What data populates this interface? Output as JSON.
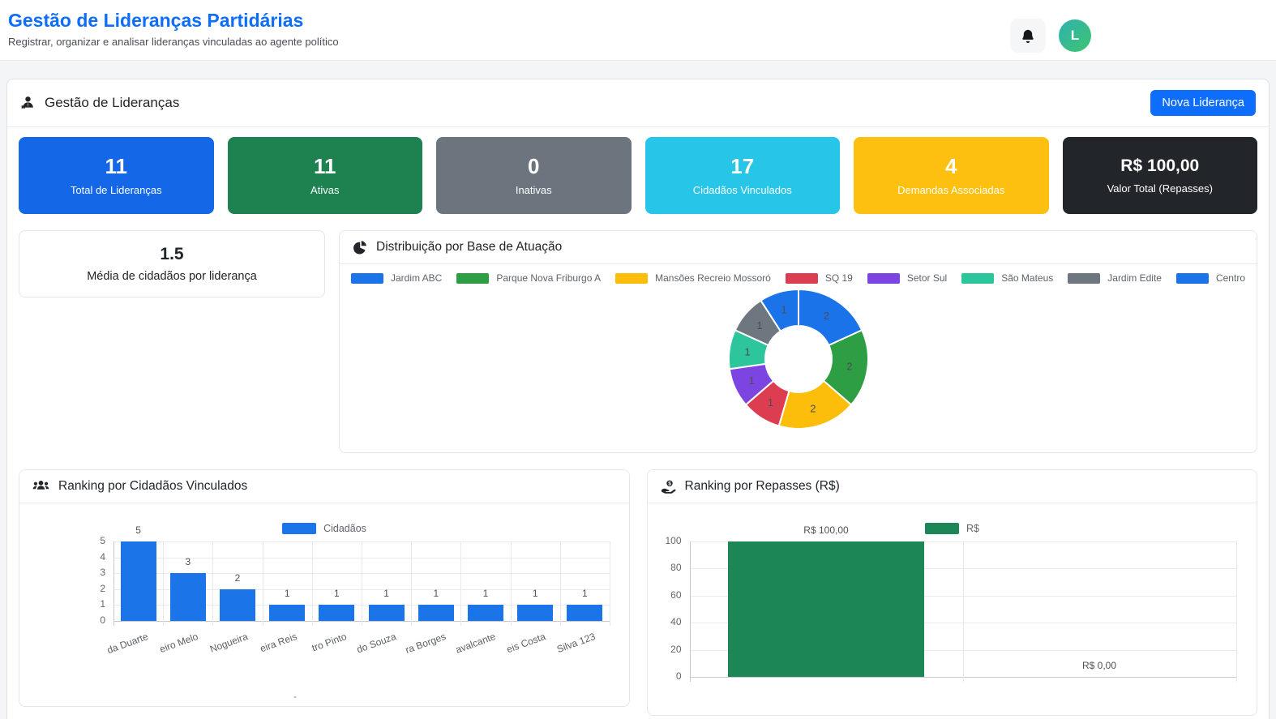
{
  "header": {
    "title": "Gestão de Lideranças Partidárias",
    "subtitle": "Registrar, organizar e analisar lideranças vinculadas ao agente político",
    "avatar_initial": "L"
  },
  "panel": {
    "title": "Gestão de Lideranças",
    "new_leadership_button": "Nova Liderança"
  },
  "stats": [
    {
      "value": "11",
      "label": "Total de Lideranças",
      "color": "#1468e8"
    },
    {
      "value": "11",
      "label": "Ativas",
      "color": "#1d8150"
    },
    {
      "value": "0",
      "label": "Inativas",
      "color": "#6c757d"
    },
    {
      "value": "17",
      "label": "Cidadãos Vinculados",
      "color": "#27c6e8"
    },
    {
      "value": "4",
      "label": "Demandas Associadas",
      "color": "#fdc010"
    },
    {
      "value": "R$ 100,00",
      "label": "Valor Total (Repasses)",
      "color": "#22262a"
    }
  ],
  "average_card": {
    "value": "1.5",
    "label": "Média de cidadãos por liderança"
  },
  "cards": {
    "distribution_title": "Distribuição por Base de Atuação",
    "citizens_title": "Ranking por Cidadãos Vinculados",
    "repasses_title": "Ranking por Repasses (R$)",
    "citizens_axis_note": "-"
  },
  "chart_data": [
    {
      "id": "distribution",
      "type": "pie",
      "donut": true,
      "title": "Distribuição por Base de Atuação",
      "labels": [
        "Jardim ABC",
        "Parque Nova Friburgo A",
        "Mansões Recreio Mossoró",
        "SQ 19",
        "Setor Sul",
        "São Mateus",
        "Jardim Edite",
        "Centro"
      ],
      "values": [
        2,
        2,
        2,
        1,
        1,
        1,
        1,
        1
      ],
      "colors": [
        "#1a73e8",
        "#2e9e44",
        "#fcbe0b",
        "#dc3d51",
        "#7c44e0",
        "#2cc59c",
        "#6e7780",
        "#1a73e8"
      ],
      "legend_position": "top",
      "slice_data_labels": true
    },
    {
      "id": "citizens",
      "type": "bar",
      "title": "Ranking por Cidadãos Vinculados",
      "legend": "Cidadãos",
      "color": "#1b74e8",
      "categories": [
        "da Duarte",
        "eiro Melo",
        "Nogueira",
        "eira Reis",
        "tro Pinto",
        "do Souza",
        "ra Borges",
        "avalcante",
        "eis Costa",
        "Silva 123"
      ],
      "values": [
        5,
        3,
        2,
        1,
        1,
        1,
        1,
        1,
        1,
        1
      ],
      "ylim": [
        0,
        5
      ],
      "yticks": [
        0,
        1,
        2,
        3,
        4,
        5
      ],
      "grid": true,
      "legend_position": "top"
    },
    {
      "id": "repasses",
      "type": "bar",
      "title": "Ranking por Repasses (R$)",
      "legend": "R$",
      "color": "#1d8656",
      "categories": [
        "",
        ""
      ],
      "values": [
        100,
        0
      ],
      "bar_value_labels": [
        "R$ 100,00",
        "R$ 0,00"
      ],
      "ylim": [
        0,
        100
      ],
      "yticks": [
        0,
        20,
        40,
        60,
        80,
        100
      ],
      "grid": true,
      "legend_position": "top"
    }
  ]
}
